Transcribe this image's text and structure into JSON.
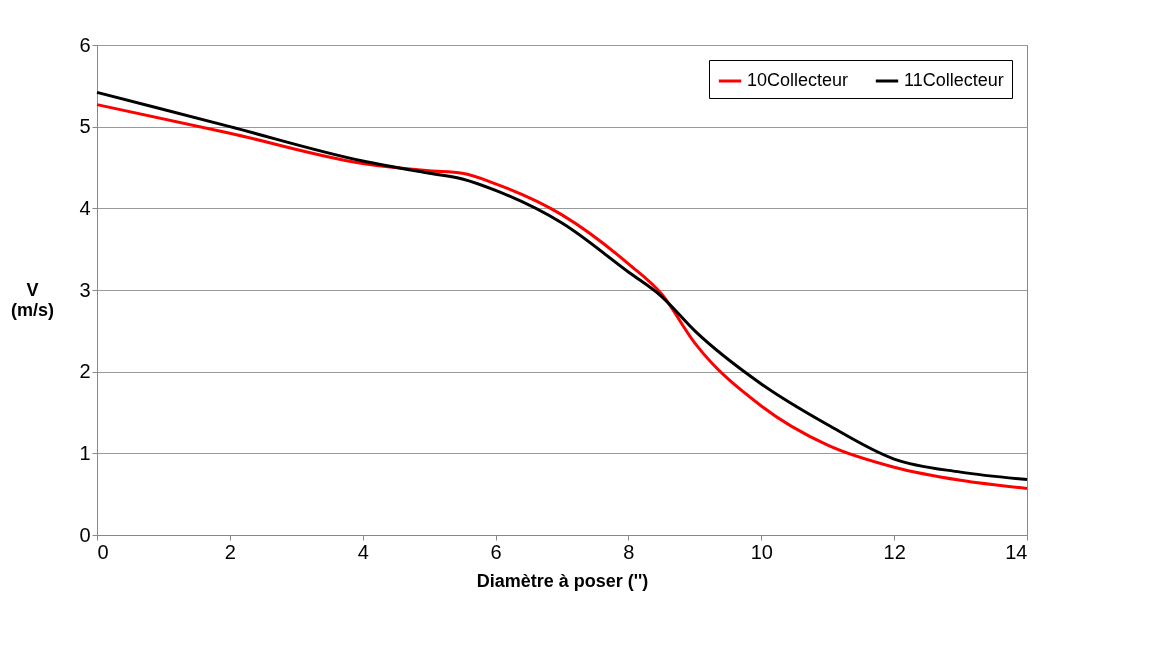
{
  "chart_data": {
    "type": "line",
    "xlabel": "Diamètre à poser ('')",
    "ylabel": "V\n(m/s)",
    "x": [
      0,
      2,
      4,
      5,
      5.5,
      6,
      7,
      8,
      8.5,
      9,
      10,
      11,
      12,
      13,
      14
    ],
    "series": [
      {
        "name": "10Collecteur",
        "color": "#ff0000",
        "values": [
          5.27,
          4.92,
          4.55,
          4.46,
          4.43,
          4.3,
          3.92,
          3.32,
          2.95,
          2.35,
          1.58,
          1.1,
          0.83,
          0.67,
          0.57
        ]
      },
      {
        "name": "11Collecteur",
        "color": "#000000",
        "values": [
          5.42,
          5.0,
          4.58,
          4.43,
          4.36,
          4.22,
          3.82,
          3.22,
          2.92,
          2.5,
          1.85,
          1.35,
          0.93,
          0.77,
          0.68
        ]
      }
    ],
    "xlim": [
      0,
      14
    ],
    "xticks": [
      0,
      2,
      4,
      6,
      8,
      10,
      12,
      14
    ],
    "ylim": [
      0,
      6
    ],
    "yticks": [
      0,
      1,
      2,
      3,
      4,
      5,
      6
    ],
    "grid": "y",
    "legend": "top right",
    "line_style": "solid",
    "marker": "none"
  }
}
